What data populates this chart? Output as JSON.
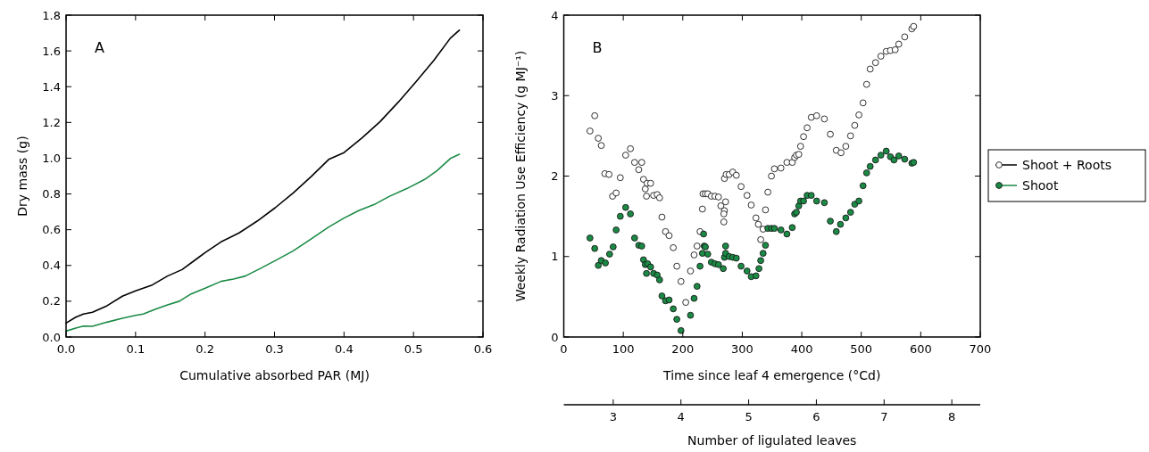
{
  "chart_data": [
    {
      "type": "line",
      "annotations": [
        "A"
      ],
      "xlabel": "Cumulative absorbed PAR (MJ)",
      "ylabel": "Dry mass (g)",
      "xlim": [
        0,
        0.6
      ],
      "ylim": [
        0,
        1.8
      ],
      "xticks": [
        {
          "value": 0,
          "label": "0.0"
        },
        {
          "value": 0.1,
          "label": "0.1"
        },
        {
          "value": 0.2,
          "label": "0.2"
        },
        {
          "value": 0.3,
          "label": "0.3"
        },
        {
          "value": 0.4,
          "label": "0.4"
        },
        {
          "value": 0.5,
          "label": "0.5"
        },
        {
          "value": 0.6,
          "label": "0.6"
        }
      ],
      "yticks": [
        {
          "value": 0,
          "label": "0.0"
        },
        {
          "value": 0.2,
          "label": "0.2"
        },
        {
          "value": 0.4,
          "label": "0.4"
        },
        {
          "value": 0.6,
          "label": "0.6"
        },
        {
          "value": 0.8,
          "label": "0.8"
        },
        {
          "value": 1,
          "label": "1.0"
        },
        {
          "value": 1.2,
          "label": "1.2"
        },
        {
          "value": 1.4,
          "label": "1.4"
        },
        {
          "value": 1.6,
          "label": "1.6"
        },
        {
          "value": 1.8,
          "label": "1.8"
        }
      ],
      "series": [
        {
          "color": "#000000",
          "x": [
            0,
            0.014,
            0.025,
            0.038,
            0.059,
            0.081,
            0.1,
            0.124,
            0.146,
            0.167,
            0.189,
            0.201,
            0.223,
            0.249,
            0.275,
            0.301,
            0.327,
            0.353,
            0.378,
            0.4,
            0.426,
            0.452,
            0.478,
            0.503,
            0.529,
            0.553,
            0.566
          ],
          "values": [
            0.078,
            0.111,
            0.128,
            0.138,
            0.175,
            0.228,
            0.258,
            0.291,
            0.341,
            0.377,
            0.44,
            0.474,
            0.532,
            0.582,
            0.648,
            0.723,
            0.806,
            0.898,
            0.993,
            1.031,
            1.114,
            1.205,
            1.313,
            1.425,
            1.546,
            1.671,
            1.716
          ]
        },
        {
          "color": "#1b8a45",
          "x": [
            0,
            0.014,
            0.025,
            0.038,
            0.059,
            0.081,
            0.1,
            0.111,
            0.128,
            0.146,
            0.163,
            0.18,
            0.201,
            0.223,
            0.241,
            0.258,
            0.279,
            0.301,
            0.327,
            0.353,
            0.378,
            0.4,
            0.421,
            0.443,
            0.465,
            0.491,
            0.516,
            0.534,
            0.553,
            0.566
          ],
          "values": [
            0.033,
            0.05,
            0.061,
            0.06,
            0.083,
            0.105,
            0.121,
            0.128,
            0.155,
            0.18,
            0.2,
            0.241,
            0.274,
            0.311,
            0.324,
            0.341,
            0.382,
            0.427,
            0.482,
            0.549,
            0.615,
            0.665,
            0.707,
            0.74,
            0.786,
            0.831,
            0.881,
            0.931,
            0.998,
            1.022
          ]
        }
      ]
    },
    {
      "type": "scatter",
      "annotations": [
        "B"
      ],
      "xlabel": "Time since leaf 4 emergence (°Cd)",
      "ylabel": "Weekly Radiation Use Efficiency (g MJ⁻¹)",
      "x2label": "Number of ligulated leaves",
      "xlim": [
        0,
        700
      ],
      "ylim": [
        0,
        4
      ],
      "xticks": [
        0,
        100,
        200,
        300,
        400,
        500,
        600,
        700
      ],
      "yticks": [
        0,
        1,
        2,
        3,
        4
      ],
      "x2lim": [
        2.27,
        8.42
      ],
      "x2ticks": [
        3,
        4,
        5,
        6,
        7,
        8
      ],
      "marker": "circle",
      "legend": "right",
      "series": [
        {
          "name": "Shoot + Roots",
          "color": "#ffffff",
          "x": [
            44,
            52,
            58,
            63,
            69,
            76,
            82,
            88,
            95,
            104,
            112,
            119,
            126,
            131,
            134,
            137,
            140,
            146,
            139,
            151,
            157,
            161,
            165,
            171,
            177,
            184,
            190,
            197,
            205,
            213,
            219,
            224,
            229,
            233,
            234,
            238,
            242,
            248,
            254,
            260,
            264,
            272,
            270,
            269,
            269,
            270,
            273,
            278,
            284,
            290,
            298,
            308,
            315,
            323,
            327,
            331,
            335,
            339,
            343,
            349,
            354,
            365,
            375,
            384,
            388,
            391,
            395,
            398,
            403,
            409,
            416,
            425,
            438,
            448,
            458,
            466,
            474,
            482,
            489,
            496,
            503,
            509,
            515,
            524,
            533,
            542,
            549,
            557,
            563,
            573,
            585,
            588
          ],
          "values": [
            2.56,
            2.75,
            2.47,
            2.38,
            2.03,
            2.02,
            1.75,
            1.79,
            1.98,
            2.26,
            2.34,
            2.17,
            2.08,
            2.17,
            1.96,
            1.84,
            1.91,
            1.91,
            1.75,
            1.76,
            1.77,
            1.73,
            1.49,
            1.31,
            1.26,
            1.11,
            0.88,
            0.69,
            0.43,
            0.82,
            1.02,
            1.13,
            1.31,
            1.59,
            1.78,
            1.78,
            1.78,
            1.75,
            1.75,
            1.74,
            1.63,
            1.68,
            1.57,
            1.53,
            1.43,
            1.97,
            2.02,
            2.02,
            2.05,
            2.01,
            1.87,
            1.76,
            1.64,
            1.48,
            1.4,
            1.21,
            1.34,
            1.58,
            1.8,
            2,
            2.09,
            2.1,
            2.17,
            2.17,
            2.23,
            2.26,
            2.27,
            2.37,
            2.49,
            2.6,
            2.73,
            2.75,
            2.71,
            2.52,
            2.32,
            2.29,
            2.37,
            2.5,
            2.63,
            2.76,
            2.91,
            3.14,
            3.33,
            3.41,
            3.49,
            3.55,
            3.56,
            3.57,
            3.64,
            3.73,
            3.83,
            3.86
          ]
        },
        {
          "name": "Shoot",
          "color": "#1b8a45",
          "x": [
            44,
            52,
            58,
            63,
            70,
            77,
            83,
            88,
            95,
            104,
            112,
            119,
            126,
            131,
            134,
            137,
            141,
            146,
            139,
            151,
            157,
            161,
            165,
            171,
            177,
            184,
            190,
            197,
            213,
            219,
            224,
            229,
            233,
            235,
            236,
            238,
            242,
            248,
            254,
            260,
            268,
            270,
            272,
            272,
            278,
            284,
            290,
            298,
            308,
            315,
            323,
            328,
            331,
            335,
            339,
            343,
            349,
            354,
            365,
            375,
            384,
            388,
            391,
            395,
            398,
            403,
            409,
            416,
            425,
            438,
            448,
            458,
            465,
            474,
            482,
            489,
            496,
            503,
            509,
            515,
            524,
            533,
            542,
            549,
            555,
            563,
            573,
            585,
            588
          ],
          "values": [
            1.23,
            1.1,
            0.89,
            0.95,
            0.92,
            1.03,
            1.12,
            1.33,
            1.5,
            1.61,
            1.53,
            1.23,
            1.14,
            1.13,
            0.96,
            0.9,
            0.91,
            0.87,
            0.79,
            0.79,
            0.77,
            0.71,
            0.51,
            0.45,
            0.46,
            0.35,
            0.22,
            0.08,
            0.27,
            0.48,
            0.63,
            0.88,
            1.04,
            1.28,
            1.13,
            1.12,
            1.03,
            0.93,
            0.91,
            0.9,
            0.85,
            0.99,
            1.13,
            1.04,
            1,
            0.99,
            0.98,
            0.88,
            0.82,
            0.75,
            0.76,
            0.85,
            0.95,
            1.04,
            1.14,
            1.35,
            1.35,
            1.35,
            1.33,
            1.28,
            1.36,
            1.53,
            1.55,
            1.63,
            1.69,
            1.69,
            1.76,
            1.76,
            1.69,
            1.67,
            1.44,
            1.31,
            1.4,
            1.48,
            1.55,
            1.65,
            1.69,
            1.88,
            2.04,
            2.12,
            2.2,
            2.26,
            2.31,
            2.24,
            2.2,
            2.25,
            2.21,
            2.16,
            2.17
          ]
        }
      ]
    }
  ]
}
